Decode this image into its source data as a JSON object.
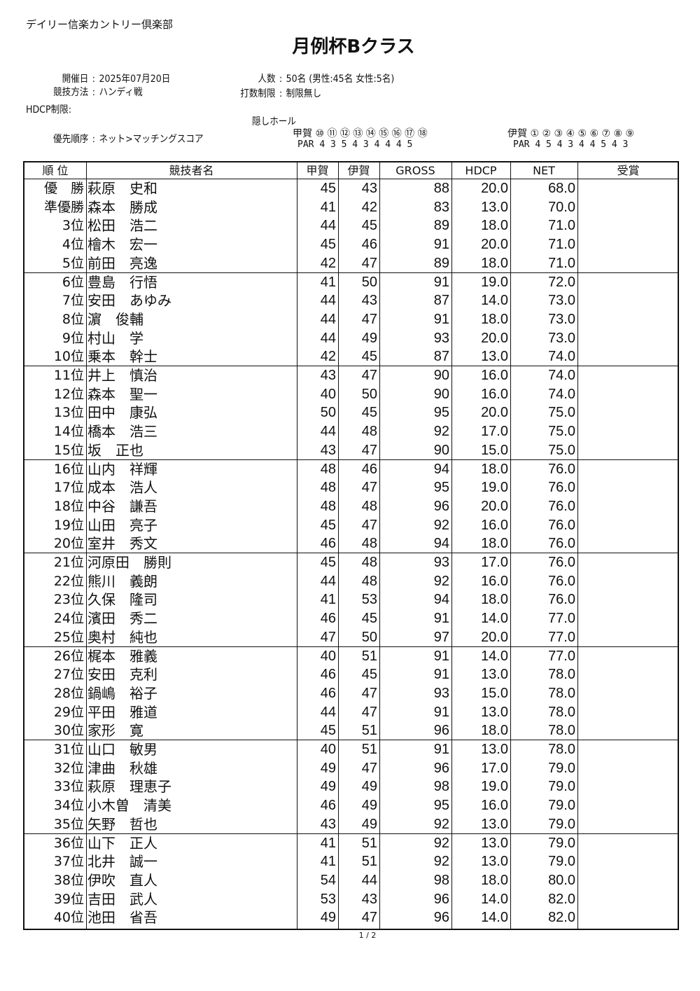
{
  "header": {
    "club": "デイリー信楽カントリー倶楽部",
    "title": "月例杯Bクラス"
  },
  "info": {
    "date_label": "開催日",
    "date_value": "2025年07月20日",
    "players_label": "人数",
    "players_value": "50名 (男性:45名 女性:5名)",
    "method_label": "競技方法",
    "method_value": "ハンディ戦",
    "limit_label": "打数制限",
    "limit_value": "制限無し",
    "hdcp_label": "HDCP制限",
    "priority_label": "優先順序",
    "priority_value": "ネット>マッチングスコア",
    "separator": ":"
  },
  "hidden_holes": {
    "label": "隠しホール",
    "out": {
      "course": "甲賀",
      "holes": "⑩ ⑪ ⑫ ⑬ ⑭ ⑮ ⑯ ⑰ ⑱",
      "par_label": "PAR",
      "pars": "4  3  5  4  3  4  4  4  5"
    },
    "in": {
      "course": "伊賀",
      "holes": "① ② ③ ④ ⑤ ⑥ ⑦ ⑧ ⑨",
      "par_label": "PAR",
      "pars": "4  5  4  3  4  4  5  4  3"
    }
  },
  "table": {
    "columns": [
      "順 位",
      "競技者名",
      "甲賀",
      "伊賀",
      "GROSS",
      "HDCP",
      "NET",
      "受賞"
    ],
    "rows": [
      {
        "rank": "優　勝",
        "name": "萩原　史和",
        "koka": "45",
        "iga": "43",
        "gross": "88",
        "hdcp": "20.0",
        "net": "68.0",
        "award": ""
      },
      {
        "rank": "準優勝",
        "name": "森本　勝成",
        "koka": "41",
        "iga": "42",
        "gross": "83",
        "hdcp": "13.0",
        "net": "70.0",
        "award": ""
      },
      {
        "rank": "3位",
        "name": "松田　浩二",
        "koka": "44",
        "iga": "45",
        "gross": "89",
        "hdcp": "18.0",
        "net": "71.0",
        "award": ""
      },
      {
        "rank": "4位",
        "name": "檜木　宏一",
        "koka": "45",
        "iga": "46",
        "gross": "91",
        "hdcp": "20.0",
        "net": "71.0",
        "award": ""
      },
      {
        "rank": "5位",
        "name": "前田　亮逸",
        "koka": "42",
        "iga": "47",
        "gross": "89",
        "hdcp": "18.0",
        "net": "71.0",
        "award": ""
      },
      {
        "rank": "6位",
        "name": "豊島　行悟",
        "koka": "41",
        "iga": "50",
        "gross": "91",
        "hdcp": "19.0",
        "net": "72.0",
        "award": ""
      },
      {
        "rank": "7位",
        "name": "安田　あゆみ",
        "koka": "44",
        "iga": "43",
        "gross": "87",
        "hdcp": "14.0",
        "net": "73.0",
        "award": ""
      },
      {
        "rank": "8位",
        "name": "濵　俊輔",
        "koka": "44",
        "iga": "47",
        "gross": "91",
        "hdcp": "18.0",
        "net": "73.0",
        "award": ""
      },
      {
        "rank": "9位",
        "name": "村山　学",
        "koka": "44",
        "iga": "49",
        "gross": "93",
        "hdcp": "20.0",
        "net": "73.0",
        "award": ""
      },
      {
        "rank": "10位",
        "name": "乗本　幹士",
        "koka": "42",
        "iga": "45",
        "gross": "87",
        "hdcp": "13.0",
        "net": "74.0",
        "award": ""
      },
      {
        "rank": "11位",
        "name": "井上　慎治",
        "koka": "43",
        "iga": "47",
        "gross": "90",
        "hdcp": "16.0",
        "net": "74.0",
        "award": ""
      },
      {
        "rank": "12位",
        "name": "森本　聖一",
        "koka": "40",
        "iga": "50",
        "gross": "90",
        "hdcp": "16.0",
        "net": "74.0",
        "award": ""
      },
      {
        "rank": "13位",
        "name": "田中　康弘",
        "koka": "50",
        "iga": "45",
        "gross": "95",
        "hdcp": "20.0",
        "net": "75.0",
        "award": ""
      },
      {
        "rank": "14位",
        "name": "橋本　浩三",
        "koka": "44",
        "iga": "48",
        "gross": "92",
        "hdcp": "17.0",
        "net": "75.0",
        "award": ""
      },
      {
        "rank": "15位",
        "name": "坂　正也",
        "koka": "43",
        "iga": "47",
        "gross": "90",
        "hdcp": "15.0",
        "net": "75.0",
        "award": ""
      },
      {
        "rank": "16位",
        "name": "山内　祥輝",
        "koka": "48",
        "iga": "46",
        "gross": "94",
        "hdcp": "18.0",
        "net": "76.0",
        "award": ""
      },
      {
        "rank": "17位",
        "name": "成本　浩人",
        "koka": "48",
        "iga": "47",
        "gross": "95",
        "hdcp": "19.0",
        "net": "76.0",
        "award": ""
      },
      {
        "rank": "18位",
        "name": "中谷　謙吾",
        "koka": "48",
        "iga": "48",
        "gross": "96",
        "hdcp": "20.0",
        "net": "76.0",
        "award": ""
      },
      {
        "rank": "19位",
        "name": "山田　亮子",
        "koka": "45",
        "iga": "47",
        "gross": "92",
        "hdcp": "16.0",
        "net": "76.0",
        "award": ""
      },
      {
        "rank": "20位",
        "name": "室井　秀文",
        "koka": "46",
        "iga": "48",
        "gross": "94",
        "hdcp": "18.0",
        "net": "76.0",
        "award": ""
      },
      {
        "rank": "21位",
        "name": "河原田　勝則",
        "koka": "45",
        "iga": "48",
        "gross": "93",
        "hdcp": "17.0",
        "net": "76.0",
        "award": ""
      },
      {
        "rank": "22位",
        "name": "熊川　義朗",
        "koka": "44",
        "iga": "48",
        "gross": "92",
        "hdcp": "16.0",
        "net": "76.0",
        "award": ""
      },
      {
        "rank": "23位",
        "name": "久保　隆司",
        "koka": "41",
        "iga": "53",
        "gross": "94",
        "hdcp": "18.0",
        "net": "76.0",
        "award": ""
      },
      {
        "rank": "24位",
        "name": "濱田　秀二",
        "koka": "46",
        "iga": "45",
        "gross": "91",
        "hdcp": "14.0",
        "net": "77.0",
        "award": ""
      },
      {
        "rank": "25位",
        "name": "奥村　純也",
        "koka": "47",
        "iga": "50",
        "gross": "97",
        "hdcp": "20.0",
        "net": "77.0",
        "award": ""
      },
      {
        "rank": "26位",
        "name": "梶本　雅義",
        "koka": "40",
        "iga": "51",
        "gross": "91",
        "hdcp": "14.0",
        "net": "77.0",
        "award": ""
      },
      {
        "rank": "27位",
        "name": "安田　克利",
        "koka": "46",
        "iga": "45",
        "gross": "91",
        "hdcp": "13.0",
        "net": "78.0",
        "award": ""
      },
      {
        "rank": "28位",
        "name": "鍋嶋　裕子",
        "koka": "46",
        "iga": "47",
        "gross": "93",
        "hdcp": "15.0",
        "net": "78.0",
        "award": ""
      },
      {
        "rank": "29位",
        "name": "平田　雅道",
        "koka": "44",
        "iga": "47",
        "gross": "91",
        "hdcp": "13.0",
        "net": "78.0",
        "award": ""
      },
      {
        "rank": "30位",
        "name": "家形　寛",
        "koka": "45",
        "iga": "51",
        "gross": "96",
        "hdcp": "18.0",
        "net": "78.0",
        "award": ""
      },
      {
        "rank": "31位",
        "name": "山口　敏男",
        "koka": "40",
        "iga": "51",
        "gross": "91",
        "hdcp": "13.0",
        "net": "78.0",
        "award": ""
      },
      {
        "rank": "32位",
        "name": "津曲　秋雄",
        "koka": "49",
        "iga": "47",
        "gross": "96",
        "hdcp": "17.0",
        "net": "79.0",
        "award": ""
      },
      {
        "rank": "33位",
        "name": "萩原　理恵子",
        "koka": "49",
        "iga": "49",
        "gross": "98",
        "hdcp": "19.0",
        "net": "79.0",
        "award": ""
      },
      {
        "rank": "34位",
        "name": "小木曽　清美",
        "koka": "46",
        "iga": "49",
        "gross": "95",
        "hdcp": "16.0",
        "net": "79.0",
        "award": ""
      },
      {
        "rank": "35位",
        "name": "矢野　哲也",
        "koka": "43",
        "iga": "49",
        "gross": "92",
        "hdcp": "13.0",
        "net": "79.0",
        "award": ""
      },
      {
        "rank": "36位",
        "name": "山下　正人",
        "koka": "41",
        "iga": "51",
        "gross": "92",
        "hdcp": "13.0",
        "net": "79.0",
        "award": ""
      },
      {
        "rank": "37位",
        "name": "北井　誠一",
        "koka": "41",
        "iga": "51",
        "gross": "92",
        "hdcp": "13.0",
        "net": "79.0",
        "award": ""
      },
      {
        "rank": "38位",
        "name": "伊吹　直人",
        "koka": "54",
        "iga": "44",
        "gross": "98",
        "hdcp": "18.0",
        "net": "80.0",
        "award": ""
      },
      {
        "rank": "39位",
        "name": "吉田　武人",
        "koka": "53",
        "iga": "43",
        "gross": "96",
        "hdcp": "14.0",
        "net": "82.0",
        "award": ""
      },
      {
        "rank": "40位",
        "name": "池田　省吾",
        "koka": "49",
        "iga": "47",
        "gross": "96",
        "hdcp": "14.0",
        "net": "82.0",
        "award": ""
      }
    ]
  },
  "footer": {
    "page": "1 / 2"
  }
}
